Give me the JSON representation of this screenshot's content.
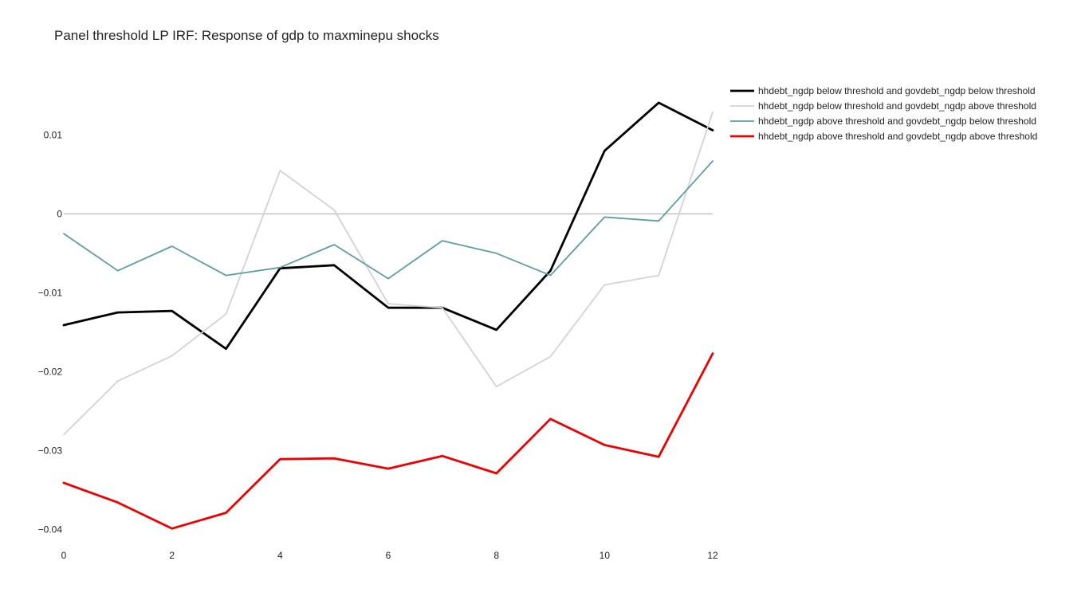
{
  "chart_data": {
    "type": "line",
    "title": "Panel threshold LP IRF: Response of gdp to maxminepu shocks",
    "xlabel": "",
    "ylabel": "",
    "x": [
      0,
      1,
      2,
      3,
      4,
      5,
      6,
      7,
      8,
      9,
      10,
      11,
      12
    ],
    "xlim": [
      0,
      12
    ],
    "ylim": [
      -0.0425,
      0.015
    ],
    "x_ticks": [
      0,
      2,
      4,
      6,
      8,
      10,
      12
    ],
    "y_ticks": [
      0.01,
      0,
      -0.01,
      -0.02,
      -0.03,
      -0.04
    ],
    "x_tick_labels": [
      "0",
      "2",
      "4",
      "6",
      "8",
      "10",
      "12"
    ],
    "y_tick_labels": [
      "0.01",
      "0",
      "−0.01",
      "−0.02",
      "−0.03",
      "−0.04"
    ],
    "grid": false,
    "zero_line": true,
    "legend_position": "top-right",
    "series": [
      {
        "name": "hhdebt_ngdp below threshold and govdebt_ngdp below threshold",
        "color": "#000000",
        "values": [
          -0.0141,
          -0.0125,
          -0.0123,
          -0.0171,
          -0.0069,
          -0.0065,
          -0.0119,
          -0.0119,
          -0.0147,
          -0.0072,
          0.008,
          0.0141,
          0.0106
        ]
      },
      {
        "name": "hhdebt_ngdp below threshold and govdebt_ngdp above threshold",
        "color": "#d3d3d3",
        "values": [
          -0.028,
          -0.0212,
          -0.018,
          -0.0127,
          0.0055,
          0.0005,
          -0.0114,
          -0.0119,
          -0.0219,
          -0.0181,
          -0.009,
          -0.0078,
          0.0129
        ]
      },
      {
        "name": "hhdebt_ngdp above threshold and govdebt_ngdp below threshold",
        "color": "#5f9ea0",
        "values": [
          -0.0025,
          -0.0072,
          -0.0041,
          -0.0078,
          -0.0068,
          -0.0039,
          -0.0082,
          -0.0034,
          -0.005,
          -0.0078,
          -0.0004,
          -0.0009,
          0.0067
        ]
      },
      {
        "name": "hhdebt_ngdp above threshold and govdebt_ngdp above threshold",
        "color": "#ee0000",
        "values": [
          -0.0341,
          -0.0366,
          -0.0399,
          -0.0379,
          -0.0311,
          -0.031,
          -0.0323,
          -0.0307,
          -0.0329,
          -0.026,
          -0.0293,
          -0.0308,
          -0.0177
        ]
      }
    ]
  }
}
